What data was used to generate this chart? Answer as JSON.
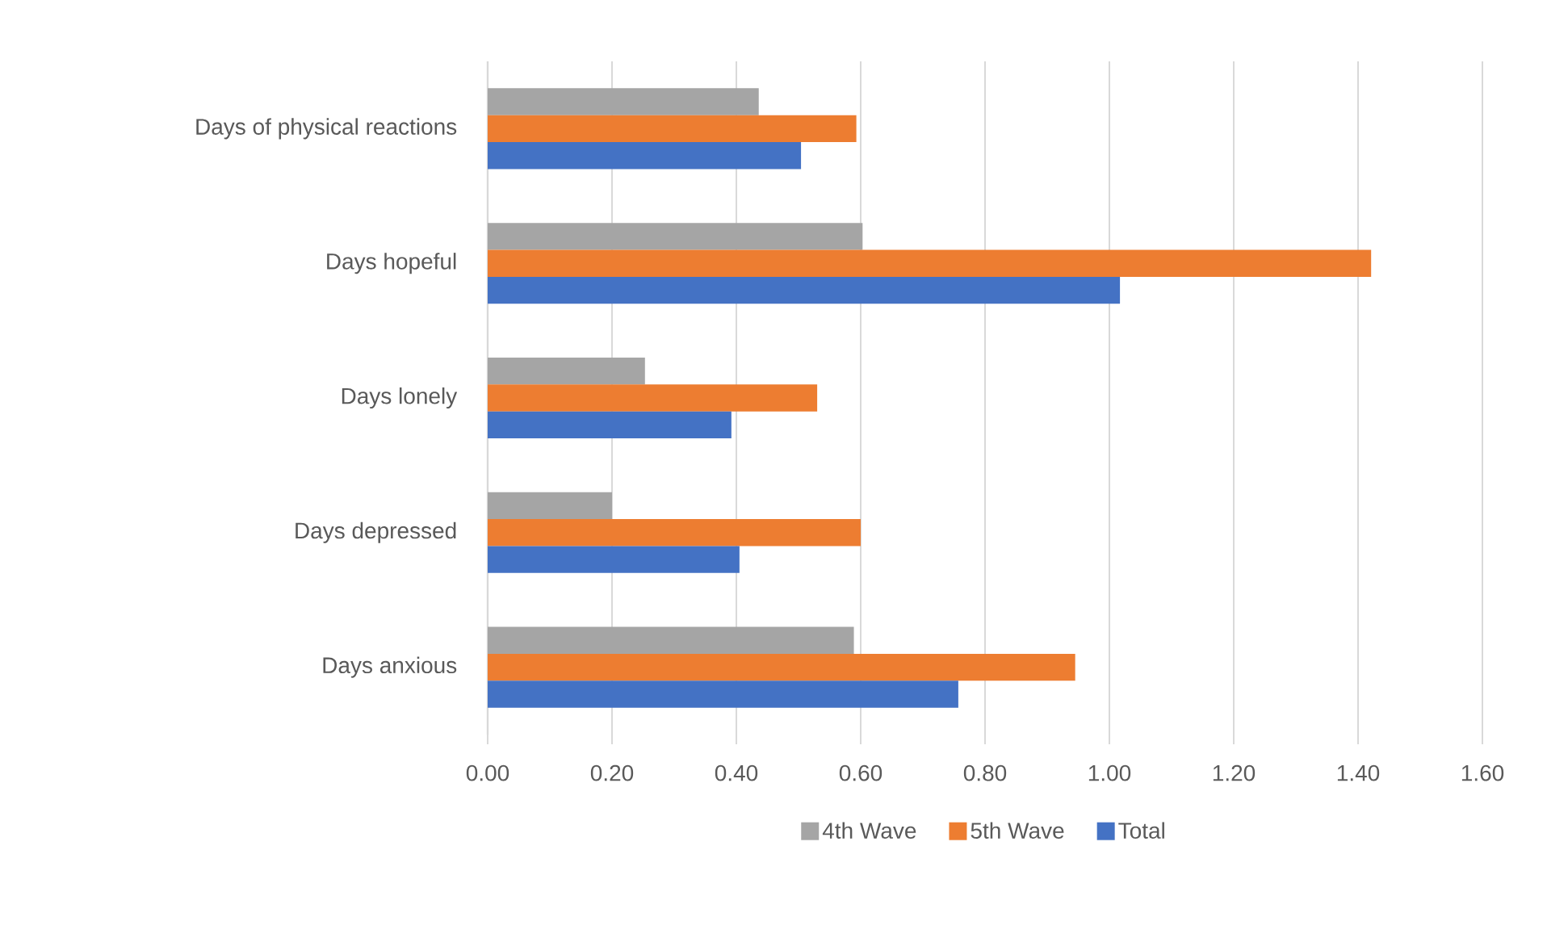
{
  "chart_data": {
    "type": "bar",
    "orientation": "horizontal",
    "categories": [
      "Days of physical reactions",
      "Days hopeful",
      "Days lonely",
      "Days depressed",
      "Days anxious"
    ],
    "series": [
      {
        "name": "4th Wave",
        "color": "#a5a5a5",
        "values": [
          0.436,
          0.603,
          0.253,
          0.2,
          0.589
        ]
      },
      {
        "name": "5th Wave",
        "color": "#ed7d31",
        "values": [
          0.593,
          1.421,
          0.53,
          0.6,
          0.945
        ]
      },
      {
        "name": "Total",
        "color": "#4472c4",
        "values": [
          0.504,
          1.017,
          0.392,
          0.405,
          0.757
        ]
      }
    ],
    "xlim": [
      0,
      1.6
    ],
    "xticks": [
      {
        "value": 0,
        "label": "0.00"
      },
      {
        "value": 0.2,
        "label": "0.20"
      },
      {
        "value": 0.4,
        "label": "0.40"
      },
      {
        "value": 0.6,
        "label": "0.60"
      },
      {
        "value": 0.8,
        "label": "0.80"
      },
      {
        "value": 1.0,
        "label": "1.00"
      },
      {
        "value": 1.2,
        "label": "1.20"
      },
      {
        "value": 1.4,
        "label": "1.40"
      },
      {
        "value": 1.6,
        "label": "1.60"
      }
    ],
    "grid": "x",
    "legend": "bottom"
  }
}
